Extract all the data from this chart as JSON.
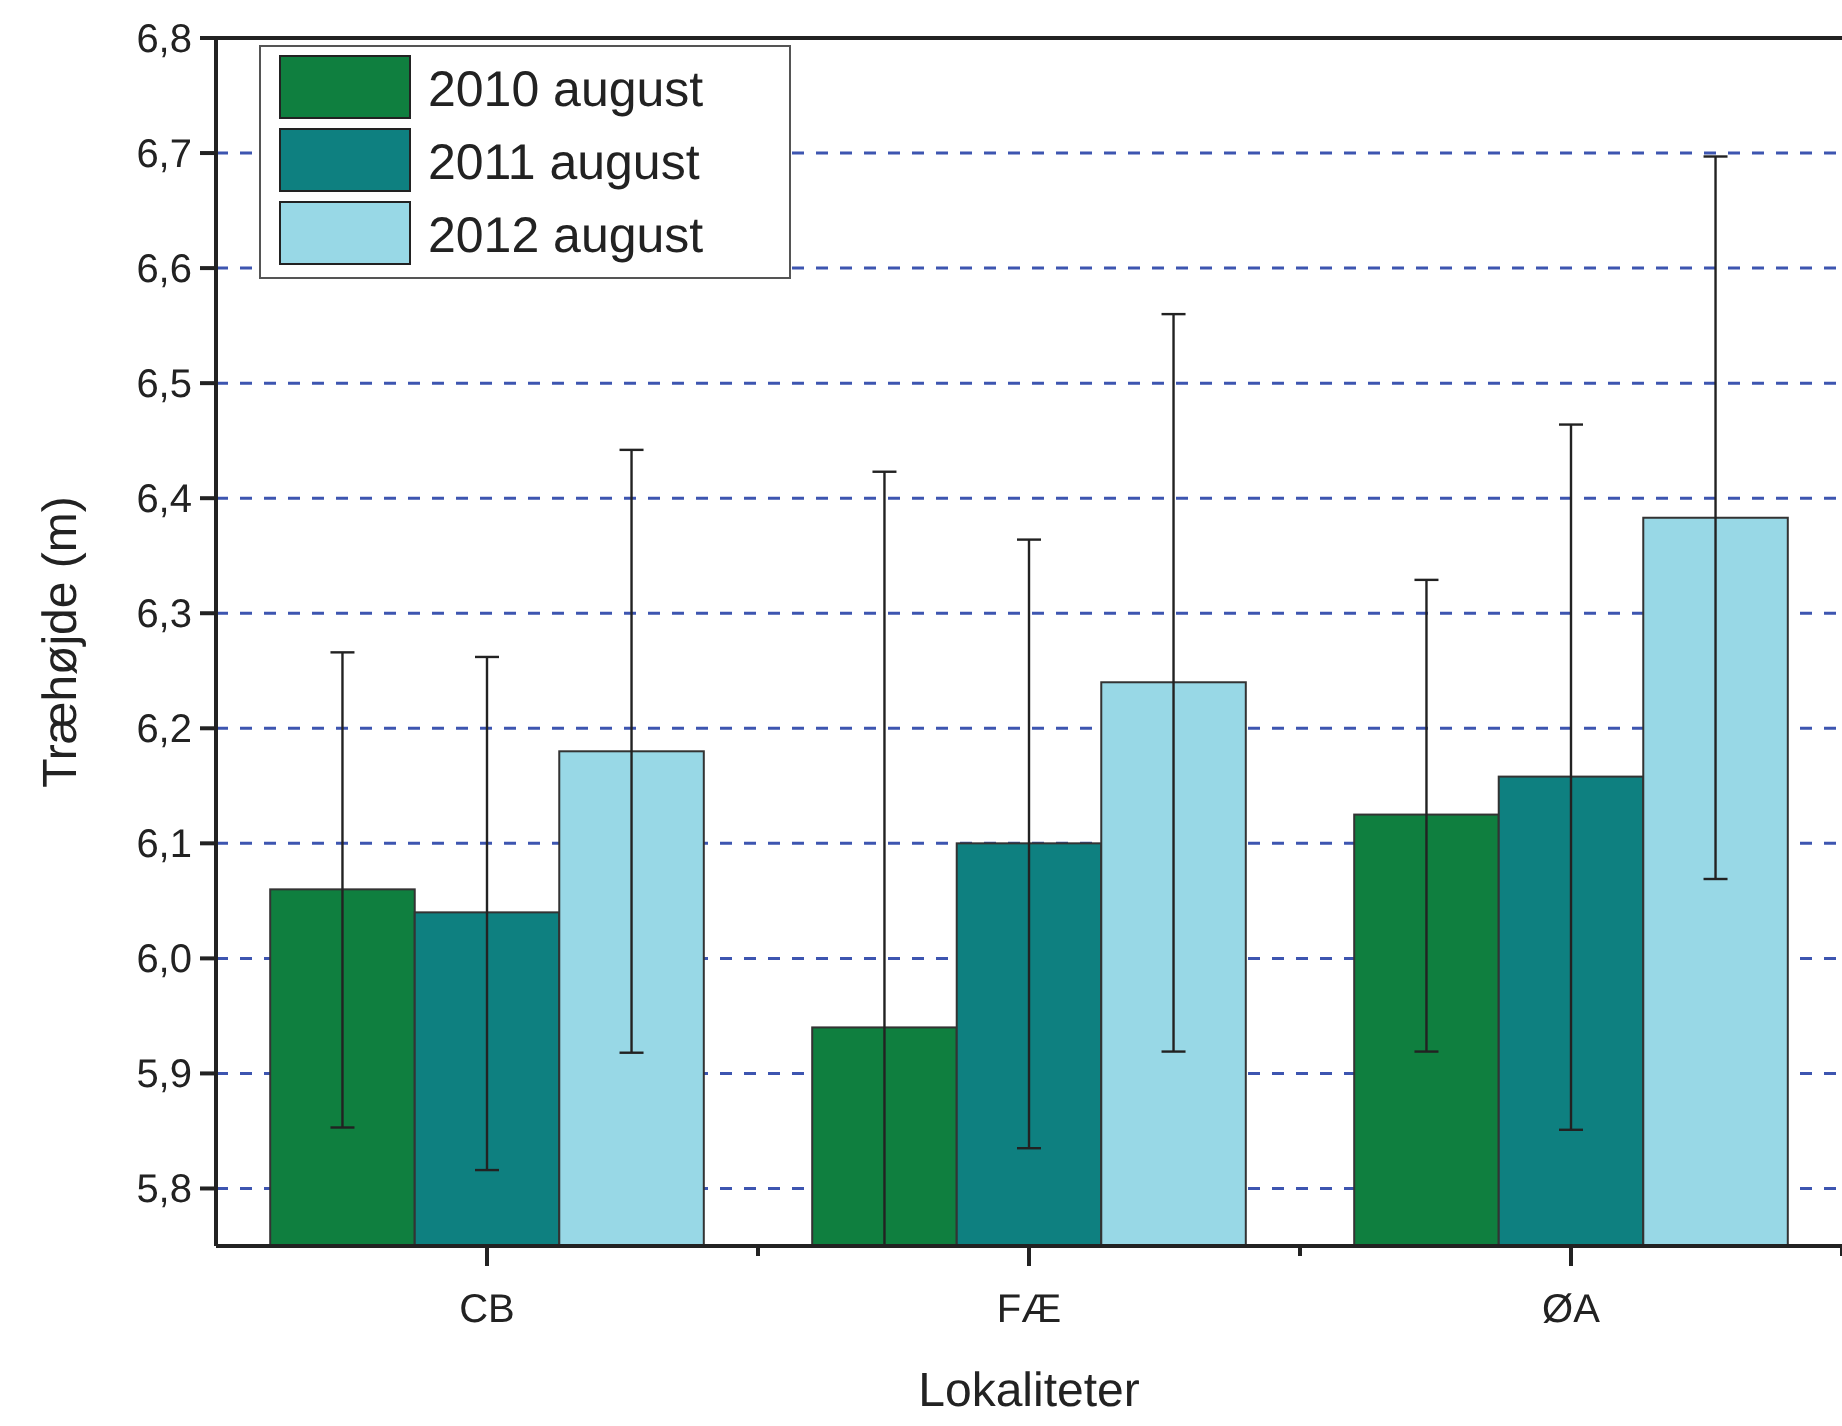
{
  "chart_data": {
    "type": "bar",
    "xlabel": "Lokaliteter",
    "ylabel": "Træhøjde (m)",
    "categories": [
      "CB",
      "FÆ",
      "ØA"
    ],
    "series": [
      {
        "name": "2010 august",
        "color": "#0f7f3f",
        "values": [
          6.06,
          5.94,
          6.125
        ],
        "errors": [
          [
            5.853,
            6.266
          ],
          [
            5.75,
            6.423
          ],
          [
            5.919,
            6.329
          ]
        ]
      },
      {
        "name": "2011 august",
        "color": "#0e8080",
        "values": [
          6.04,
          6.1,
          6.158
        ],
        "errors": [
          [
            5.816,
            6.262
          ],
          [
            5.835,
            6.364
          ],
          [
            5.851,
            6.464
          ]
        ]
      },
      {
        "name": "2012 august",
        "color": "#98d8e6",
        "values": [
          6.18,
          6.24,
          6.383
        ],
        "errors": [
          [
            5.918,
            6.442
          ],
          [
            5.919,
            6.56
          ],
          [
            6.069,
            6.697
          ]
        ]
      }
    ],
    "ylim": [
      5.75,
      6.8
    ],
    "yticks": [
      {
        "value": 5.8,
        "label": "5,8"
      },
      {
        "value": 5.9,
        "label": "5,9"
      },
      {
        "value": 6.0,
        "label": "6,0"
      },
      {
        "value": 6.1,
        "label": "6,1"
      },
      {
        "value": 6.2,
        "label": "6,2"
      },
      {
        "value": 6.3,
        "label": "6,3"
      },
      {
        "value": 6.4,
        "label": "6,4"
      },
      {
        "value": 6.5,
        "label": "6,5"
      },
      {
        "value": 6.6,
        "label": "6,6"
      },
      {
        "value": 6.7,
        "label": "6,7"
      },
      {
        "value": 6.8,
        "label": "6,8"
      }
    ],
    "grid": "y",
    "legend": "top left"
  }
}
